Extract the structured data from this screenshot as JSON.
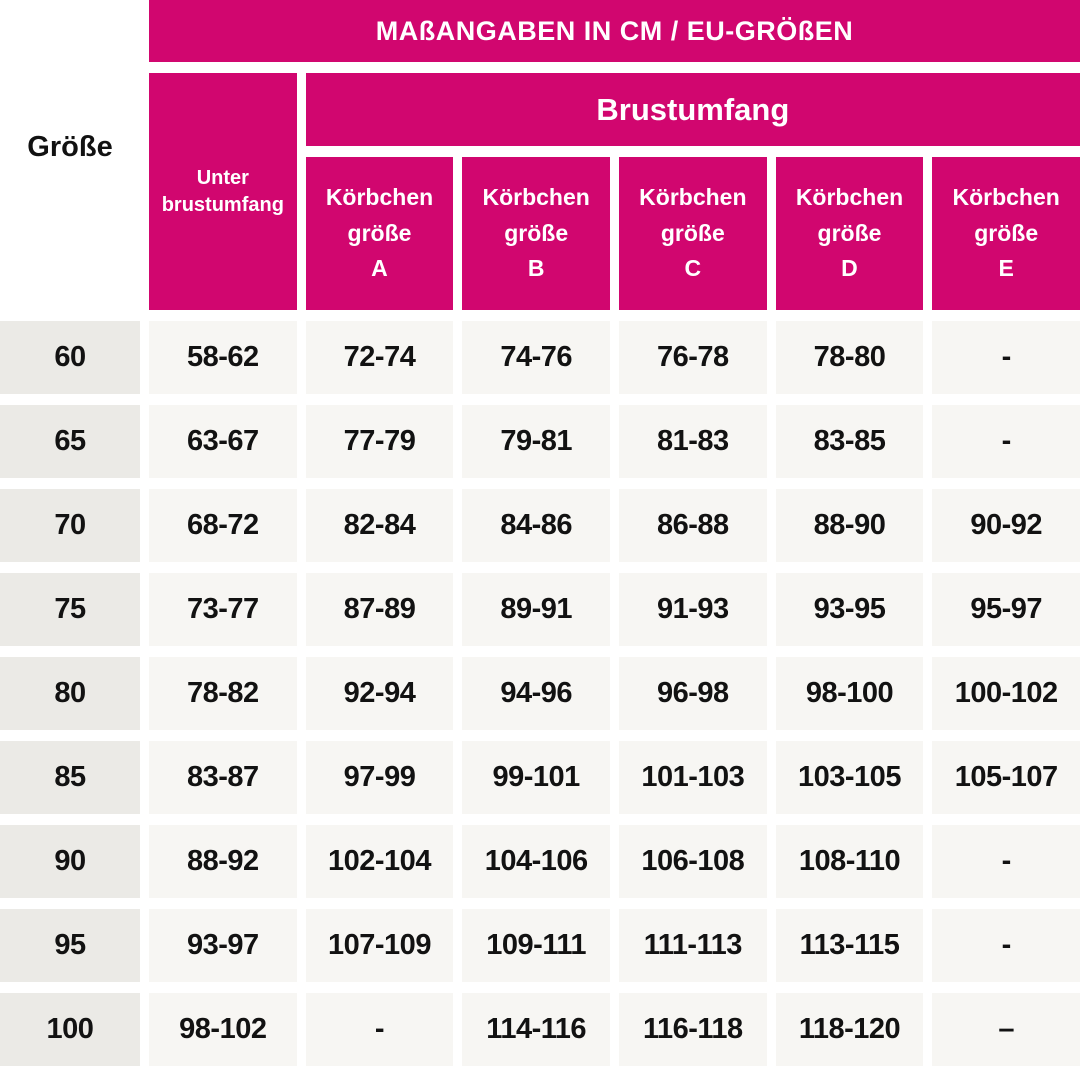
{
  "colors": {
    "accent": "#D1066F",
    "row_label_bg": "#EBEAE6",
    "cell_bg": "#F7F6F3",
    "header_text": "#FFFFFF",
    "body_text": "#121212",
    "page_bg": "#FFFFFF"
  },
  "chart_data": {
    "type": "table",
    "title": "MAßANGABEN IN CM / EU-GRÖßEN",
    "corner_label": "Größe",
    "group_header": "Brustumfang",
    "underbust_header": {
      "line1": "Unter",
      "line2": "brustumfang"
    },
    "cup_headers": [
      {
        "line1": "Körbchen",
        "line2": "größe",
        "letter": "A"
      },
      {
        "line1": "Körbchen",
        "line2": "größe",
        "letter": "B"
      },
      {
        "line1": "Körbchen",
        "line2": "größe",
        "letter": "C"
      },
      {
        "line1": "Körbchen",
        "line2": "größe",
        "letter": "D"
      },
      {
        "line1": "Körbchen",
        "line2": "größe",
        "letter": "E"
      }
    ],
    "rows": [
      {
        "size": "60",
        "underbust": "58-62",
        "cups": [
          "72-74",
          "74-76",
          "76-78",
          "78-80",
          "-"
        ]
      },
      {
        "size": "65",
        "underbust": "63-67",
        "cups": [
          "77-79",
          "79-81",
          "81-83",
          "83-85",
          "-"
        ]
      },
      {
        "size": "70",
        "underbust": "68-72",
        "cups": [
          "82-84",
          "84-86",
          "86-88",
          "88-90",
          "90-92"
        ]
      },
      {
        "size": "75",
        "underbust": "73-77",
        "cups": [
          "87-89",
          "89-91",
          "91-93",
          "93-95",
          "95-97"
        ]
      },
      {
        "size": "80",
        "underbust": "78-82",
        "cups": [
          "92-94",
          "94-96",
          "96-98",
          "98-100",
          "100-102"
        ]
      },
      {
        "size": "85",
        "underbust": "83-87",
        "cups": [
          "97-99",
          "99-101",
          "101-103",
          "103-105",
          "105-107"
        ]
      },
      {
        "size": "90",
        "underbust": "88-92",
        "cups": [
          "102-104",
          "104-106",
          "106-108",
          "108-110",
          "-"
        ]
      },
      {
        "size": "95",
        "underbust": "93-97",
        "cups": [
          "107-109",
          "109-111",
          "111-113",
          "113-115",
          "-"
        ]
      },
      {
        "size": "100",
        "underbust": "98-102",
        "cups": [
          "-",
          "114-116",
          "116-118",
          "118-120",
          "–"
        ]
      }
    ]
  }
}
